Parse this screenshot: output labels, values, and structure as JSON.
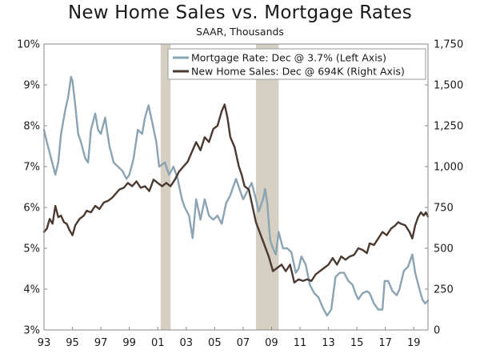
{
  "chart_data": {
    "type": "line",
    "title": "New Home Sales vs. Mortgage Rates",
    "subtitle": "SAAR, Thousands",
    "x_ticks": [
      {
        "label": "93",
        "year": 1993
      },
      {
        "label": "95",
        "year": 1995
      },
      {
        "label": "97",
        "year": 1997
      },
      {
        "label": "99",
        "year": 1999
      },
      {
        "label": "01",
        "year": 2001
      },
      {
        "label": "03",
        "year": 2003
      },
      {
        "label": "05",
        "year": 2005
      },
      {
        "label": "07",
        "year": 2007
      },
      {
        "label": "09",
        "year": 2009
      },
      {
        "label": "11",
        "year": 2011
      },
      {
        "label": "13",
        "year": 2013
      },
      {
        "label": "15",
        "year": 2015
      },
      {
        "label": "17",
        "year": 2017
      },
      {
        "label": "19",
        "year": 2019
      }
    ],
    "x_range": [
      1993,
      2020
    ],
    "left_axis": {
      "range": [
        3,
        10
      ],
      "ticks": [
        {
          "value": 3,
          "label": "3%"
        },
        {
          "value": 4,
          "label": "4%"
        },
        {
          "value": 5,
          "label": "5%"
        },
        {
          "value": 6,
          "label": "6%"
        },
        {
          "value": 7,
          "label": "7%"
        },
        {
          "value": 8,
          "label": "8%"
        },
        {
          "value": 9,
          "label": "9%"
        },
        {
          "value": 10,
          "label": "10%"
        }
      ]
    },
    "right_axis": {
      "range": [
        0,
        1750
      ],
      "ticks": [
        {
          "value": 0,
          "label": "0"
        },
        {
          "value": 250,
          "label": "250"
        },
        {
          "value": 500,
          "label": "500"
        },
        {
          "value": 750,
          "label": "750"
        },
        {
          "value": 1000,
          "label": "1,000"
        },
        {
          "value": 1250,
          "label": "1,250"
        },
        {
          "value": 1500,
          "label": "1,500"
        },
        {
          "value": 1750,
          "label": "1,750"
        }
      ]
    },
    "recessions": [
      {
        "start": 2001.2,
        "end": 2001.9
      },
      {
        "start": 2007.9,
        "end": 2009.5
      }
    ],
    "series": [
      {
        "name": "Mortgage Rate",
        "legend": "Mortgage Rate: Dec @ 3.7% (Left Axis)",
        "axis": "left",
        "color": "#8ba4b4",
        "points": [
          [
            1993.0,
            7.9
          ],
          [
            1993.2,
            7.6
          ],
          [
            1993.5,
            7.2
          ],
          [
            1993.8,
            6.8
          ],
          [
            1994.0,
            7.1
          ],
          [
            1994.2,
            7.8
          ],
          [
            1994.5,
            8.4
          ],
          [
            1994.7,
            8.7
          ],
          [
            1994.9,
            9.2
          ],
          [
            1995.0,
            9.1
          ],
          [
            1995.2,
            8.5
          ],
          [
            1995.4,
            7.8
          ],
          [
            1995.6,
            7.6
          ],
          [
            1995.9,
            7.2
          ],
          [
            1996.1,
            7.1
          ],
          [
            1996.3,
            7.9
          ],
          [
            1996.6,
            8.3
          ],
          [
            1996.8,
            7.9
          ],
          [
            1997.0,
            7.8
          ],
          [
            1997.3,
            8.2
          ],
          [
            1997.6,
            7.5
          ],
          [
            1997.9,
            7.1
          ],
          [
            1998.2,
            7.0
          ],
          [
            1998.5,
            6.9
          ],
          [
            1998.8,
            6.7
          ],
          [
            1999.0,
            6.8
          ],
          [
            1999.3,
            7.2
          ],
          [
            1999.6,
            7.9
          ],
          [
            1999.9,
            7.8
          ],
          [
            2000.1,
            8.2
          ],
          [
            2000.35,
            8.5
          ],
          [
            2000.6,
            8.1
          ],
          [
            2000.9,
            7.6
          ],
          [
            2001.1,
            7.0
          ],
          [
            2001.5,
            7.1
          ],
          [
            2001.8,
            6.8
          ],
          [
            2002.1,
            7.0
          ],
          [
            2002.4,
            6.7
          ],
          [
            2002.7,
            6.2
          ],
          [
            2002.9,
            6.0
          ],
          [
            2003.2,
            5.8
          ],
          [
            2003.45,
            5.25
          ],
          [
            2003.7,
            6.2
          ],
          [
            2004.0,
            5.7
          ],
          [
            2004.3,
            6.2
          ],
          [
            2004.6,
            5.8
          ],
          [
            2004.9,
            5.7
          ],
          [
            2005.2,
            5.8
          ],
          [
            2005.5,
            5.6
          ],
          [
            2005.8,
            6.1
          ],
          [
            2006.1,
            6.3
          ],
          [
            2006.5,
            6.7
          ],
          [
            2006.8,
            6.4
          ],
          [
            2007.0,
            6.2
          ],
          [
            2007.3,
            6.4
          ],
          [
            2007.6,
            6.6
          ],
          [
            2007.9,
            6.2
          ],
          [
            2008.1,
            5.9
          ],
          [
            2008.4,
            6.2
          ],
          [
            2008.55,
            6.45
          ],
          [
            2008.7,
            6.1
          ],
          [
            2008.9,
            5.2
          ],
          [
            2009.1,
            5.0
          ],
          [
            2009.3,
            4.85
          ],
          [
            2009.5,
            5.4
          ],
          [
            2009.8,
            5.0
          ],
          [
            2010.1,
            5.0
          ],
          [
            2010.4,
            4.9
          ],
          [
            2010.7,
            4.4
          ],
          [
            2010.9,
            4.5
          ],
          [
            2011.1,
            4.8
          ],
          [
            2011.4,
            4.6
          ],
          [
            2011.7,
            4.1
          ],
          [
            2012.0,
            3.9
          ],
          [
            2012.3,
            3.8
          ],
          [
            2012.6,
            3.55
          ],
          [
            2012.9,
            3.35
          ],
          [
            2013.2,
            3.5
          ],
          [
            2013.5,
            4.3
          ],
          [
            2013.8,
            4.4
          ],
          [
            2014.1,
            4.4
          ],
          [
            2014.4,
            4.2
          ],
          [
            2014.7,
            4.1
          ],
          [
            2014.9,
            3.9
          ],
          [
            2015.1,
            3.75
          ],
          [
            2015.4,
            3.9
          ],
          [
            2015.7,
            3.95
          ],
          [
            2015.9,
            3.9
          ],
          [
            2016.2,
            3.65
          ],
          [
            2016.5,
            3.5
          ],
          [
            2016.8,
            3.5
          ],
          [
            2016.95,
            4.2
          ],
          [
            2017.2,
            4.2
          ],
          [
            2017.5,
            3.95
          ],
          [
            2017.8,
            3.85
          ],
          [
            2018.0,
            4.0
          ],
          [
            2018.3,
            4.45
          ],
          [
            2018.6,
            4.55
          ],
          [
            2018.9,
            4.85
          ],
          [
            2019.1,
            4.4
          ],
          [
            2019.4,
            4.0
          ],
          [
            2019.6,
            3.75
          ],
          [
            2019.8,
            3.65
          ],
          [
            2020.0,
            3.72
          ]
        ]
      },
      {
        "name": "New Home Sales",
        "legend": "New Home Sales: Dec @ 694K (Right Axis)",
        "axis": "right",
        "color": "#4a3a30",
        "points": [
          [
            1993.0,
            600
          ],
          [
            1993.2,
            620
          ],
          [
            1993.4,
            680
          ],
          [
            1993.6,
            650
          ],
          [
            1993.8,
            760
          ],
          [
            1994.0,
            690
          ],
          [
            1994.2,
            700
          ],
          [
            1994.4,
            660
          ],
          [
            1994.6,
            650
          ],
          [
            1994.8,
            610
          ],
          [
            1995.0,
            580
          ],
          [
            1995.2,
            640
          ],
          [
            1995.5,
            680
          ],
          [
            1995.8,
            700
          ],
          [
            1996.0,
            730
          ],
          [
            1996.3,
            720
          ],
          [
            1996.6,
            760
          ],
          [
            1996.9,
            740
          ],
          [
            1997.2,
            780
          ],
          [
            1997.5,
            790
          ],
          [
            1997.8,
            810
          ],
          [
            1998.0,
            830
          ],
          [
            1998.3,
            860
          ],
          [
            1998.6,
            870
          ],
          [
            1998.9,
            900
          ],
          [
            1999.2,
            880
          ],
          [
            1999.5,
            910
          ],
          [
            1999.8,
            870
          ],
          [
            2000.1,
            880
          ],
          [
            2000.4,
            850
          ],
          [
            2000.7,
            920
          ],
          [
            2001.0,
            900
          ],
          [
            2001.3,
            880
          ],
          [
            2001.6,
            900
          ],
          [
            2001.9,
            880
          ],
          [
            2002.2,
            920
          ],
          [
            2002.5,
            970
          ],
          [
            2002.8,
            1000
          ],
          [
            2003.1,
            1030
          ],
          [
            2003.4,
            1090
          ],
          [
            2003.7,
            1150
          ],
          [
            2004.0,
            1100
          ],
          [
            2004.3,
            1180
          ],
          [
            2004.6,
            1150
          ],
          [
            2004.9,
            1230
          ],
          [
            2005.2,
            1250
          ],
          [
            2005.5,
            1340
          ],
          [
            2005.7,
            1380
          ],
          [
            2005.9,
            1300
          ],
          [
            2006.1,
            1180
          ],
          [
            2006.4,
            1120
          ],
          [
            2006.7,
            1000
          ],
          [
            2006.9,
            950
          ],
          [
            2007.1,
            880
          ],
          [
            2007.4,
            860
          ],
          [
            2007.6,
            780
          ],
          [
            2007.9,
            660
          ],
          [
            2008.2,
            590
          ],
          [
            2008.5,
            520
          ],
          [
            2008.8,
            450
          ],
          [
            2009.1,
            360
          ],
          [
            2009.4,
            380
          ],
          [
            2009.7,
            400
          ],
          [
            2010.0,
            360
          ],
          [
            2010.3,
            400
          ],
          [
            2010.6,
            290
          ],
          [
            2010.9,
            310
          ],
          [
            2011.2,
            300
          ],
          [
            2011.5,
            310
          ],
          [
            2011.8,
            300
          ],
          [
            2012.1,
            340
          ],
          [
            2012.4,
            360
          ],
          [
            2012.7,
            380
          ],
          [
            2013.0,
            400
          ],
          [
            2013.3,
            440
          ],
          [
            2013.6,
            400
          ],
          [
            2013.9,
            450
          ],
          [
            2014.2,
            430
          ],
          [
            2014.5,
            450
          ],
          [
            2014.8,
            460
          ],
          [
            2015.1,
            500
          ],
          [
            2015.4,
            490
          ],
          [
            2015.7,
            470
          ],
          [
            2015.9,
            530
          ],
          [
            2016.2,
            520
          ],
          [
            2016.5,
            560
          ],
          [
            2016.8,
            600
          ],
          [
            2017.1,
            580
          ],
          [
            2017.4,
            620
          ],
          [
            2017.7,
            640
          ],
          [
            2017.9,
            660
          ],
          [
            2018.1,
            650
          ],
          [
            2018.4,
            640
          ],
          [
            2018.7,
            600
          ],
          [
            2018.9,
            560
          ],
          [
            2019.1,
            640
          ],
          [
            2019.3,
            690
          ],
          [
            2019.5,
            720
          ],
          [
            2019.7,
            700
          ],
          [
            2019.85,
            720
          ],
          [
            2020.0,
            694
          ]
        ]
      }
    ]
  }
}
